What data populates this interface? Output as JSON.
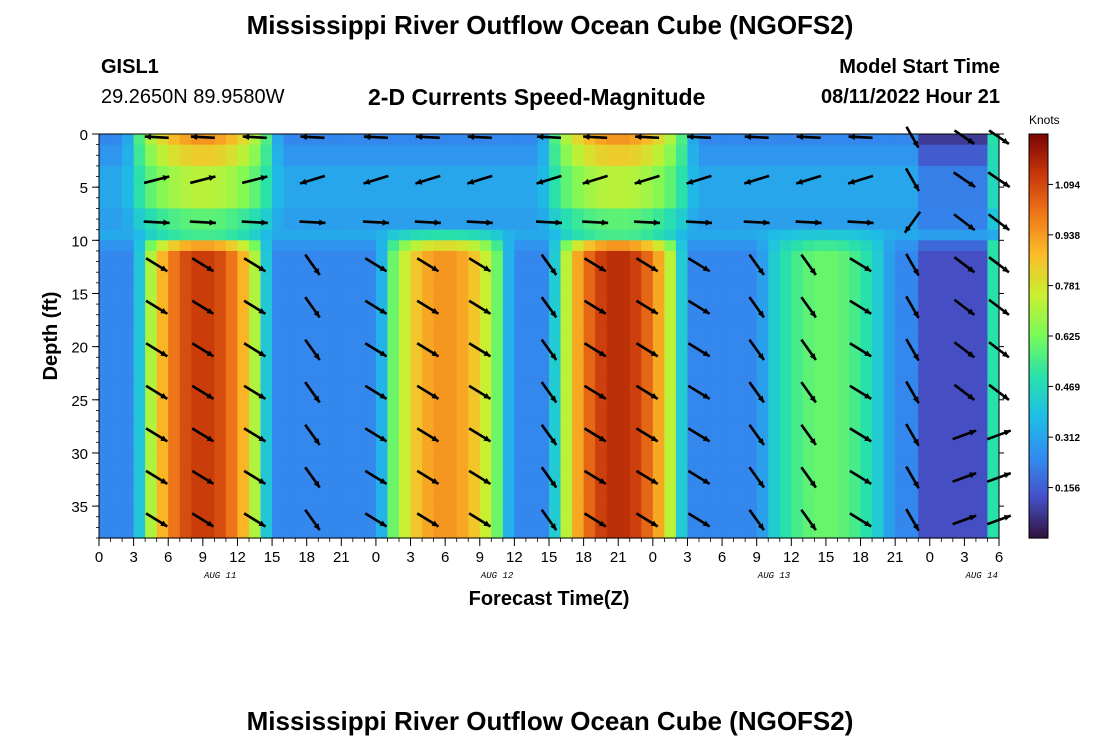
{
  "header": {
    "title": "Mississippi River Outflow Ocean Cube (NGOFS2)",
    "station_id": "GISL1",
    "station_coords": "29.2650N  89.9580W",
    "subtitle": "2-D Currents Speed-Magnitude",
    "model_start_label": "Model Start Time",
    "model_start_value": "08/11/2022 Hour 21"
  },
  "footer": {
    "title": "Mississippi River Outflow Ocean Cube (NGOFS2)"
  },
  "chart_data": {
    "type": "heatmap",
    "title": "2-D Currents Speed-Magnitude",
    "xlabel": "Forecast Time(Z)",
    "ylabel": "Depth (ft)",
    "x_range_hours": [
      0,
      78
    ],
    "ylim": [
      0,
      38
    ],
    "y_ticks": [
      "0",
      "5",
      "10",
      "15",
      "20",
      "25",
      "30",
      "35"
    ],
    "x_tick_labels": [
      "0",
      "3",
      "6",
      "9",
      "12",
      "15",
      "18",
      "21",
      "0",
      "3",
      "6",
      "9",
      "12",
      "15",
      "18",
      "21",
      "0",
      "3",
      "6",
      "9",
      "12",
      "15",
      "18",
      "21",
      "0",
      "3",
      "6"
    ],
    "date_labels": [
      {
        "label": "AUG 11",
        "hour": 10.5
      },
      {
        "label": "AUG 12",
        "hour": 34.5
      },
      {
        "label": "AUG 13",
        "hour": 58.5
      },
      {
        "label": "AUG 14",
        "hour": 76.5
      }
    ],
    "colorbar": {
      "label": "Knots",
      "min": 0,
      "max": 1.25,
      "ticks": [
        "1.094",
        "0.938",
        "0.781",
        "0.625",
        "0.469",
        "0.312",
        "0.156"
      ]
    },
    "bottom_layer_peaks": [
      {
        "center_hour": 9,
        "peak_knots": 1.12
      },
      {
        "center_hour": 30,
        "peak_knots": 0.95
      },
      {
        "center_hour": 45,
        "peak_knots": 1.15
      },
      {
        "center_hour": 63,
        "peak_knots": 0.6
      }
    ],
    "surface_layer_peaks": [
      {
        "center_hour": 9,
        "peak_knots": 0.95
      },
      {
        "center_hour": 45,
        "peak_knots": 0.95
      },
      {
        "center_hour": 77.7,
        "peak_knots": 0.5
      }
    ],
    "arrow_depths_ft": [
      0,
      4,
      8,
      12,
      16,
      20,
      24,
      28,
      32,
      36
    ],
    "arrow_hours": [
      5,
      9,
      13.5,
      18.5,
      24,
      28.5,
      33,
      39,
      43,
      47.5,
      52,
      57,
      61.5,
      66,
      70.5,
      75,
      78
    ]
  }
}
